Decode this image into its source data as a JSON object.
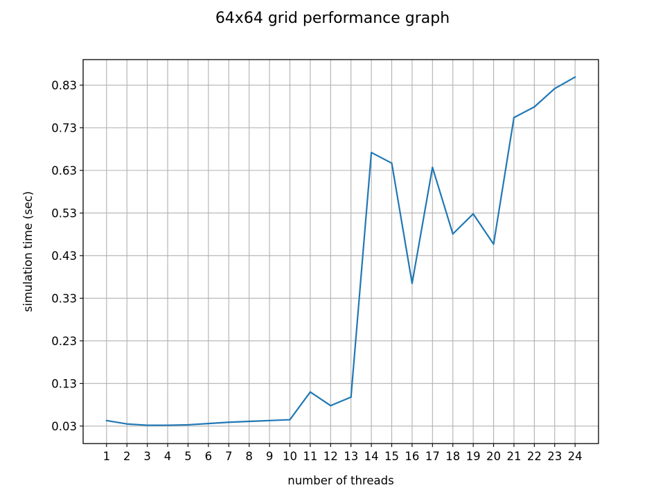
{
  "chart_data": {
    "type": "line",
    "title": "64x64 grid performance graph",
    "xlabel": "number of threads",
    "ylabel": "simulation time (sec)",
    "x": [
      1,
      2,
      3,
      4,
      5,
      6,
      7,
      8,
      9,
      10,
      11,
      12,
      13,
      14,
      15,
      16,
      17,
      18,
      19,
      20,
      21,
      22,
      23,
      24
    ],
    "xticks": [
      "1",
      "2",
      "3",
      "4",
      "5",
      "6",
      "7",
      "8",
      "9",
      "10",
      "11",
      "12",
      "13",
      "14",
      "15",
      "16",
      "17",
      "18",
      "19",
      "20",
      "21",
      "22",
      "23",
      "24"
    ],
    "yticks": [
      "0.03",
      "0.13",
      "0.23",
      "0.33",
      "0.43",
      "0.53",
      "0.63",
      "0.73",
      "0.83"
    ],
    "ytick_values": [
      0.03,
      0.13,
      0.23,
      0.33,
      0.43,
      0.53,
      0.63,
      0.73,
      0.83
    ],
    "series": [
      {
        "values": [
          0.043,
          0.035,
          0.032,
          0.032,
          0.033,
          0.036,
          0.039,
          0.041,
          0.043,
          0.045,
          0.11,
          0.078,
          0.098,
          0.672,
          0.647,
          0.365,
          0.637,
          0.481,
          0.528,
          0.457,
          0.754,
          0.779,
          0.822,
          0.849
        ],
        "color": "#1f77b4"
      }
    ],
    "xlim": [
      -0.15,
      25.15
    ],
    "ylim": [
      -0.011,
      0.89
    ],
    "grid": true,
    "legend": "none"
  }
}
